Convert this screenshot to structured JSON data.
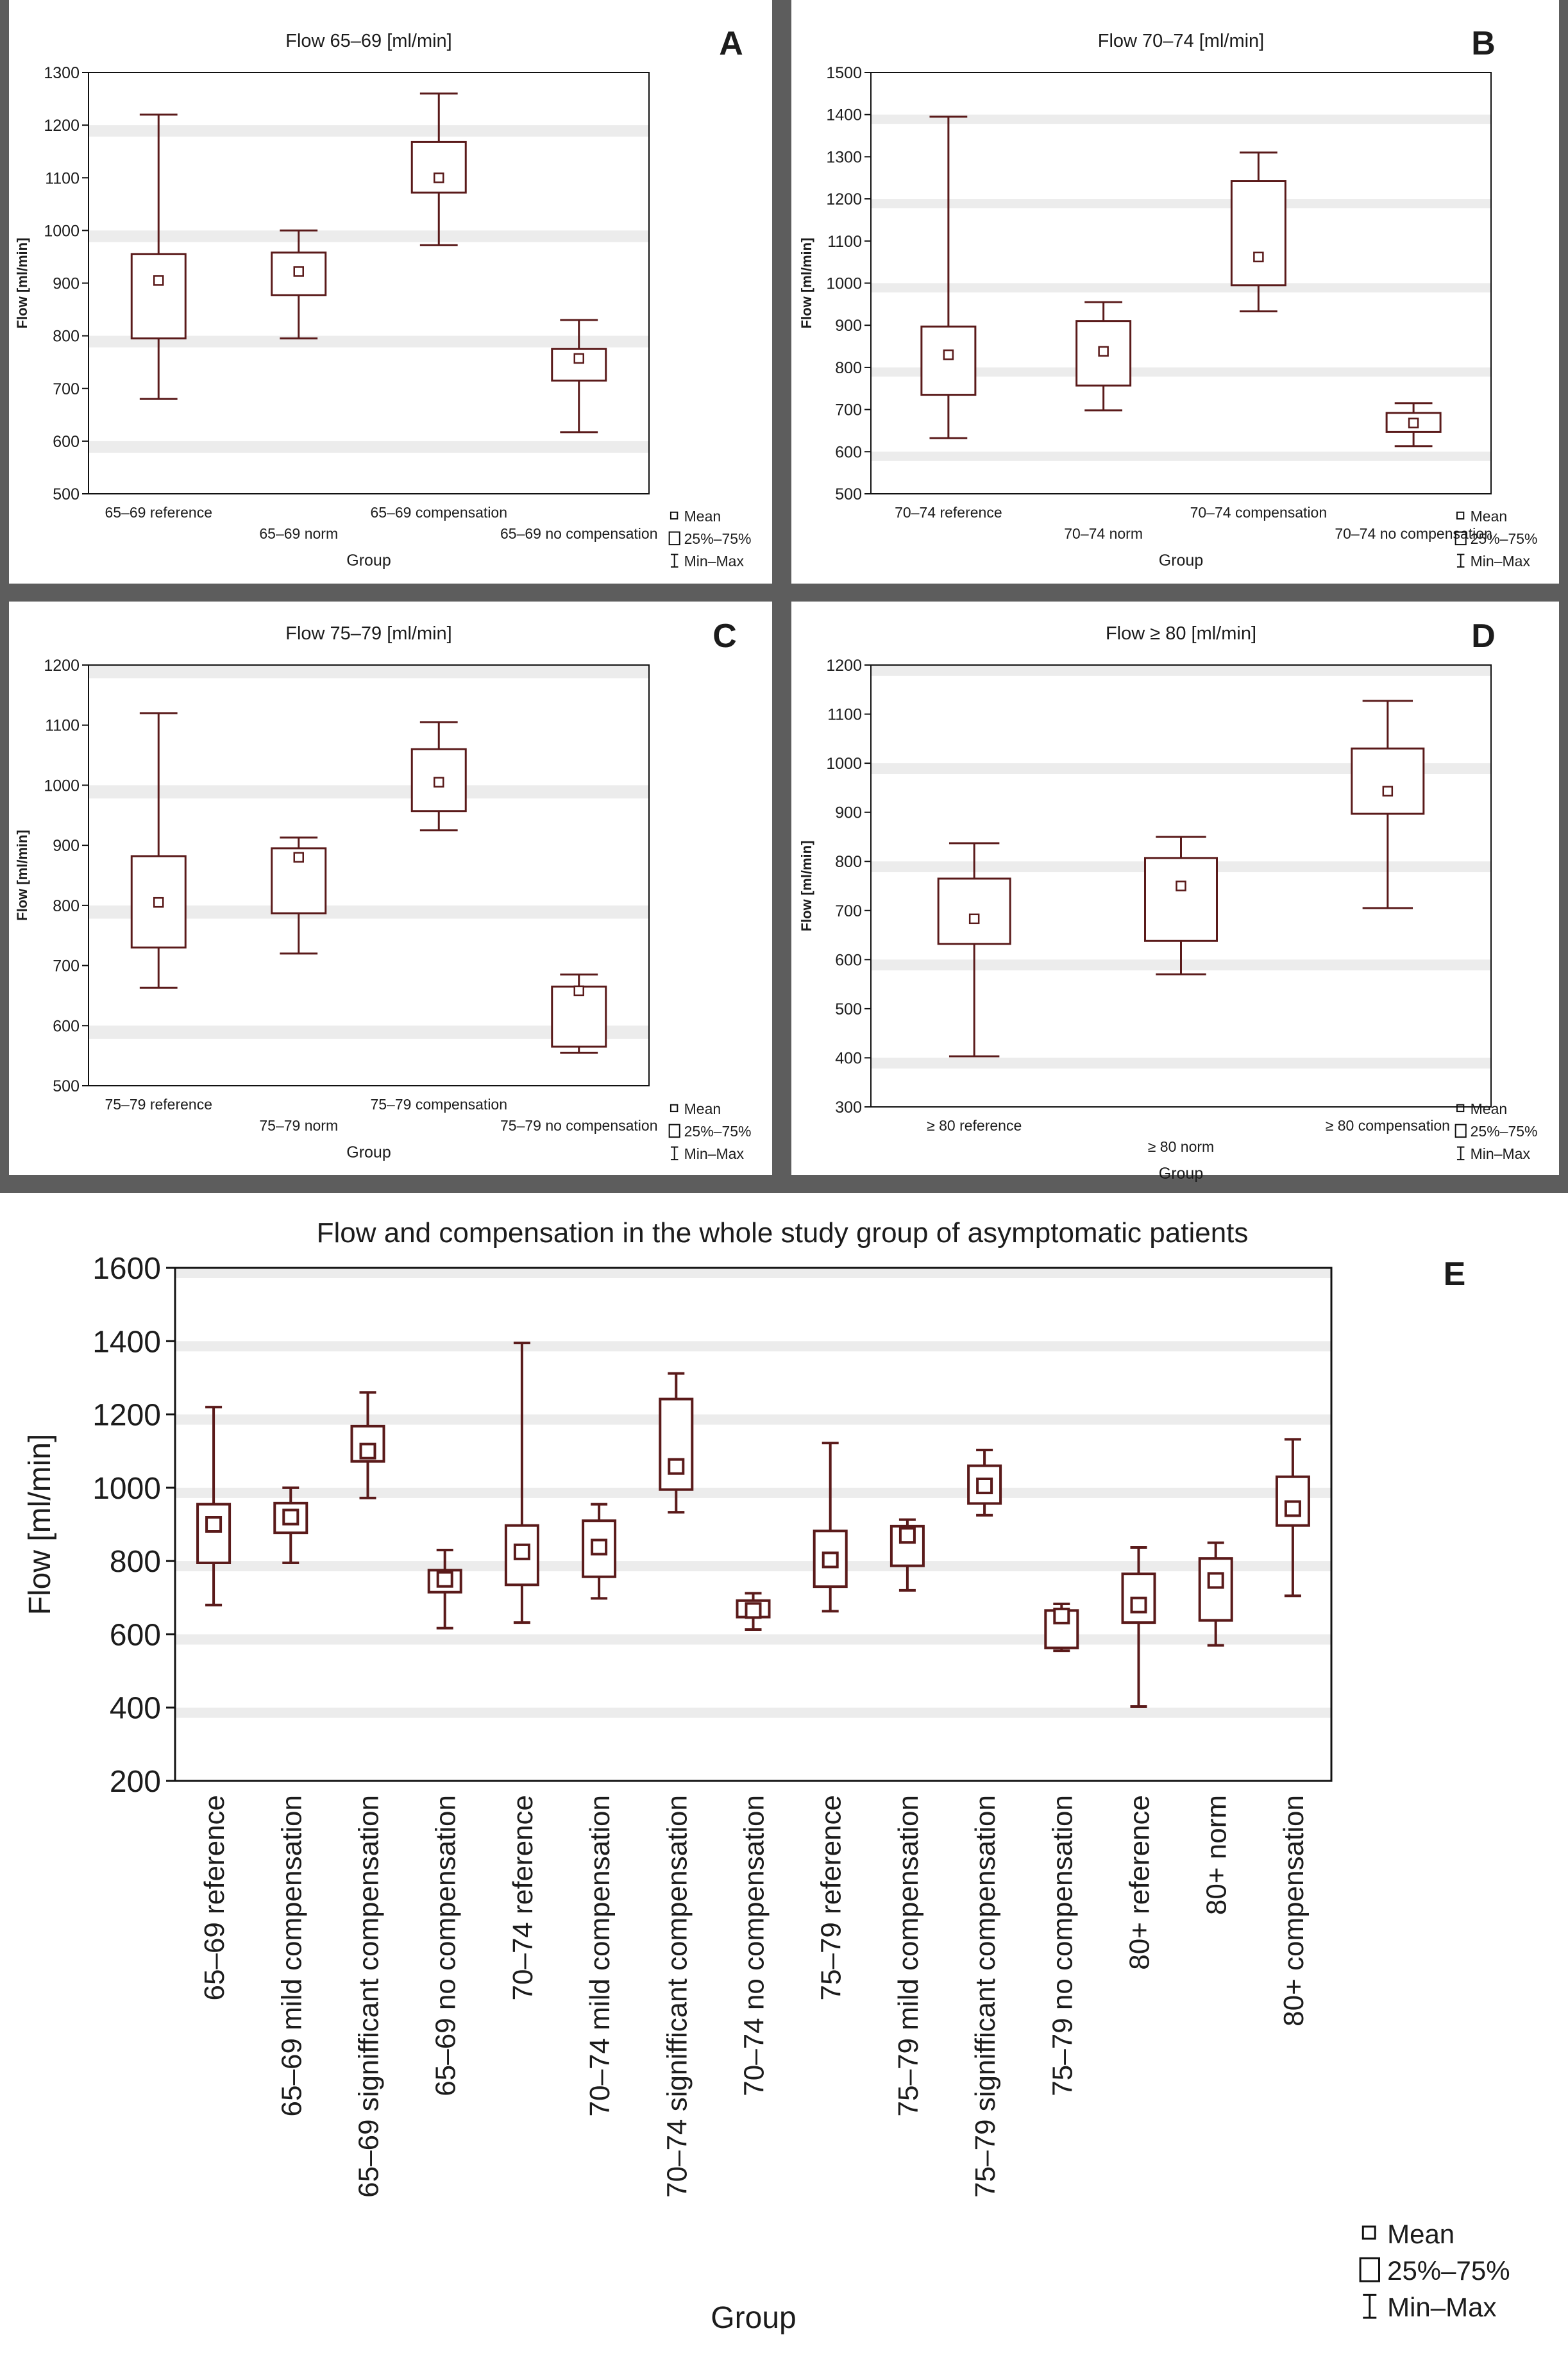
{
  "panels": [
    {
      "letter": "A",
      "chart_data": {
        "type": "box",
        "title": "Flow 65–69 [ml/min]",
        "xlabel": "Group",
        "ylabel": "Flow [ml/min]",
        "ylim": [
          500,
          1300
        ],
        "yticks": [
          500,
          600,
          700,
          800,
          900,
          1000,
          1100,
          1200,
          1300
        ],
        "categories": [
          "65–69 reference",
          "65–69 norm",
          "65–69 compensation",
          "65–69 no compensation"
        ],
        "series": [
          {
            "name": "65–69 reference",
            "min": 680,
            "q1": 795,
            "mean": 905,
            "q3": 955,
            "max": 1220
          },
          {
            "name": "65–69 norm",
            "min": 795,
            "q1": 877,
            "mean": 922,
            "q3": 958,
            "max": 1000
          },
          {
            "name": "65–69 compensation",
            "min": 972,
            "q1": 1072,
            "mean": 1100,
            "q3": 1168,
            "max": 1260
          },
          {
            "name": "65–69 no compensation",
            "min": 617,
            "q1": 715,
            "mean": 757,
            "q3": 775,
            "max": 830
          }
        ],
        "legend": [
          "Mean",
          "25%–75%",
          "Min–Max"
        ]
      }
    },
    {
      "letter": "B",
      "chart_data": {
        "type": "box",
        "title": "Flow 70–74 [ml/min]",
        "xlabel": "Group",
        "ylabel": "Flow [ml/min]",
        "ylim": [
          500,
          1500
        ],
        "yticks": [
          500,
          600,
          700,
          800,
          900,
          1000,
          1100,
          1200,
          1300,
          1400,
          1500
        ],
        "categories": [
          "70–74 reference",
          "70–74 norm",
          "70–74 compensation",
          "70–74 no compensation"
        ],
        "series": [
          {
            "name": "70–74 reference",
            "min": 632,
            "q1": 735,
            "mean": 830,
            "q3": 897,
            "max": 1395
          },
          {
            "name": "70–74 norm",
            "min": 698,
            "q1": 757,
            "mean": 838,
            "q3": 910,
            "max": 955
          },
          {
            "name": "70–74 compensation",
            "min": 933,
            "q1": 995,
            "mean": 1062,
            "q3": 1242,
            "max": 1310
          },
          {
            "name": "70–74 no compensation",
            "min": 613,
            "q1": 647,
            "mean": 668,
            "q3": 692,
            "max": 715
          }
        ],
        "legend": [
          "Mean",
          "25%–75%",
          "Min–Max"
        ]
      }
    },
    {
      "letter": "C",
      "chart_data": {
        "type": "box",
        "title": "Flow 75–79 [ml/min]",
        "xlabel": "Group",
        "ylabel": "Flow [ml/min]",
        "ylim": [
          500,
          1200
        ],
        "yticks": [
          500,
          600,
          700,
          800,
          900,
          1000,
          1100,
          1200
        ],
        "categories": [
          "75–79 reference",
          "75–79 norm",
          "75–79 compensation",
          "75–79 no compensation"
        ],
        "series": [
          {
            "name": "75–79 reference",
            "min": 663,
            "q1": 730,
            "mean": 805,
            "q3": 882,
            "max": 1120
          },
          {
            "name": "75–79 norm",
            "min": 720,
            "q1": 787,
            "mean": 880,
            "q3": 895,
            "max": 913
          },
          {
            "name": "75–79 compensation",
            "min": 925,
            "q1": 957,
            "mean": 1005,
            "q3": 1060,
            "max": 1105
          },
          {
            "name": "75–79 no compensation",
            "min": 555,
            "q1": 565,
            "mean": 658,
            "q3": 665,
            "max": 685
          }
        ],
        "legend": [
          "Mean",
          "25%–75%",
          "Min–Max"
        ]
      }
    },
    {
      "letter": "D",
      "chart_data": {
        "type": "box",
        "title": "Flow ≥ 80 [ml/min]",
        "xlabel": "Group",
        "ylabel": "Flow [ml/min]",
        "ylim": [
          300,
          1200
        ],
        "yticks": [
          300,
          400,
          500,
          600,
          700,
          800,
          900,
          1000,
          1100,
          1200
        ],
        "categories": [
          "≥ 80 reference",
          "≥ 80 norm",
          "≥ 80 compensation"
        ],
        "series": [
          {
            "name": "≥ 80 reference",
            "min": 403,
            "q1": 632,
            "mean": 683,
            "q3": 765,
            "max": 837
          },
          {
            "name": "≥ 80 norm",
            "min": 570,
            "q1": 638,
            "mean": 750,
            "q3": 807,
            "max": 850
          },
          {
            "name": "≥ 80 compensation",
            "min": 705,
            "q1": 897,
            "mean": 943,
            "q3": 1030,
            "max": 1127
          }
        ],
        "legend": [
          "Mean",
          "25%–75%",
          "Min–Max"
        ]
      }
    }
  ],
  "panel_e": {
    "letter": "E",
    "chart_data": {
      "type": "box",
      "title": "Flow and compensation in the whole study group of asymptomatic patients",
      "xlabel": "Group",
      "ylabel": "Flow [ml/min]",
      "ylim": [
        200,
        1600
      ],
      "yticks": [
        200,
        400,
        600,
        800,
        1000,
        1200,
        1400,
        1600
      ],
      "categories": [
        "65–69 reference",
        "65–69 mild compensation",
        "65–69 signifficant compensation",
        "65–69 no compensation",
        "70–74 reference",
        "70–74 mild compensation",
        "70–74 signifficant compensation",
        "70–74 no compensation",
        "75–79 reference",
        "75–79 mild compensation",
        "75–79 signifficant compensation",
        "75–79 no compensation",
        "80+ reference",
        "80+ norm",
        "80+ compensation"
      ],
      "series": [
        {
          "name": "65–69 reference",
          "min": 680,
          "q1": 795,
          "mean": 900,
          "q3": 955,
          "max": 1220
        },
        {
          "name": "65–69 mild compensation",
          "min": 795,
          "q1": 877,
          "mean": 920,
          "q3": 958,
          "max": 1000
        },
        {
          "name": "65–69 signifficant compensation",
          "min": 972,
          "q1": 1072,
          "mean": 1100,
          "q3": 1168,
          "max": 1260
        },
        {
          "name": "65–69 no compensation",
          "min": 617,
          "q1": 715,
          "mean": 750,
          "q3": 775,
          "max": 830
        },
        {
          "name": "70–74 reference",
          "min": 632,
          "q1": 735,
          "mean": 825,
          "q3": 897,
          "max": 1395
        },
        {
          "name": "70–74 mild compensation",
          "min": 698,
          "q1": 757,
          "mean": 838,
          "q3": 910,
          "max": 955
        },
        {
          "name": "70–74 signifficant compensation",
          "min": 933,
          "q1": 995,
          "mean": 1058,
          "q3": 1242,
          "max": 1312
        },
        {
          "name": "70–74 no compensation",
          "min": 613,
          "q1": 647,
          "mean": 665,
          "q3": 692,
          "max": 712
        },
        {
          "name": "75–79 reference",
          "min": 663,
          "q1": 730,
          "mean": 803,
          "q3": 882,
          "max": 1122
        },
        {
          "name": "75–79 mild compensation",
          "min": 720,
          "q1": 787,
          "mean": 870,
          "q3": 895,
          "max": 913
        },
        {
          "name": "75–79 signifficant compensation",
          "min": 925,
          "q1": 957,
          "mean": 1005,
          "q3": 1060,
          "max": 1103
        },
        {
          "name": "75–79 no compensation",
          "min": 555,
          "q1": 563,
          "mean": 650,
          "q3": 665,
          "max": 683
        },
        {
          "name": "80+ reference",
          "min": 403,
          "q1": 632,
          "mean": 680,
          "q3": 765,
          "max": 837
        },
        {
          "name": "80+ norm",
          "min": 570,
          "q1": 638,
          "mean": 747,
          "q3": 807,
          "max": 850
        },
        {
          "name": "80+ compensation",
          "min": 705,
          "q1": 897,
          "mean": 943,
          "q3": 1030,
          "max": 1132
        }
      ],
      "legend": [
        "Mean",
        "25%–75%",
        "Min–Max"
      ]
    }
  },
  "colors": {
    "box_stroke": "#5a1a1a",
    "band": "#ececec",
    "divider": "#5d5d5d"
  }
}
